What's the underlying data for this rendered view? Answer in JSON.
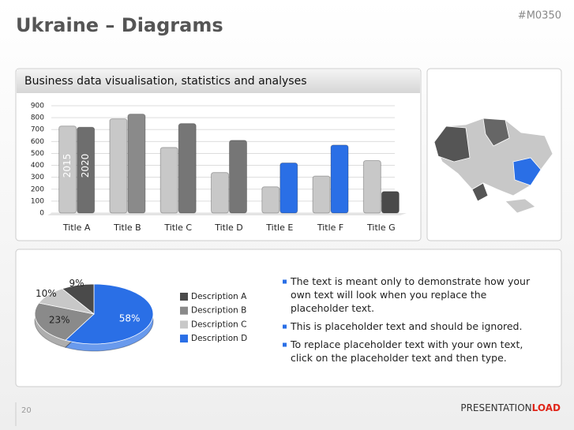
{
  "header": {
    "title": "Ukraine – Diagrams",
    "code": "#M0350"
  },
  "panel_title": "Business data visualisation, statistics and analyses",
  "chart_data": [
    {
      "type": "bar",
      "categories": [
        "Title A",
        "Title B",
        "Title C",
        "Title D",
        "Title E",
        "Title F",
        "Title G"
      ],
      "series": [
        {
          "name": "2015",
          "colors": [
            "#c8c8c8",
            "#c8c8c8",
            "#c8c8c8",
            "#c8c8c8",
            "#c8c8c8",
            "#c8c8c8",
            "#c8c8c8"
          ],
          "values": [
            730,
            790,
            550,
            340,
            220,
            310,
            440
          ]
        },
        {
          "name": "2020",
          "colors": [
            "#6e6e6e",
            "#8a8a8a",
            "#767676",
            "#767676",
            "#2a6fe6",
            "#2a6fe6",
            "#4a4a4a"
          ],
          "values": [
            720,
            830,
            750,
            610,
            420,
            570,
            180
          ]
        }
      ],
      "ylim": [
        0,
        900
      ],
      "yticks": [
        0,
        100,
        200,
        300,
        400,
        500,
        600,
        700,
        800,
        900
      ],
      "grid": true
    },
    {
      "type": "pie",
      "categories": [
        "Description A",
        "Description B",
        "Description C",
        "Description D"
      ],
      "values": [
        9,
        23,
        10,
        58
      ],
      "value_labels": [
        "9%",
        "23%",
        "10%",
        "58%"
      ],
      "colors": [
        "#4a4a4a",
        "#8a8a8a",
        "#c8c8c8",
        "#2a6fe6"
      ]
    }
  ],
  "bullets": [
    "The text is meant only to demonstrate how your own text will look when you replace the placeholder text.",
    "This is placeholder text and should be ignored.",
    "To replace placeholder text with your own text, click on the placeholder text and then type."
  ],
  "footer": {
    "page": "20",
    "logo_a": "PRESENTATION",
    "logo_b": "LOAD"
  }
}
